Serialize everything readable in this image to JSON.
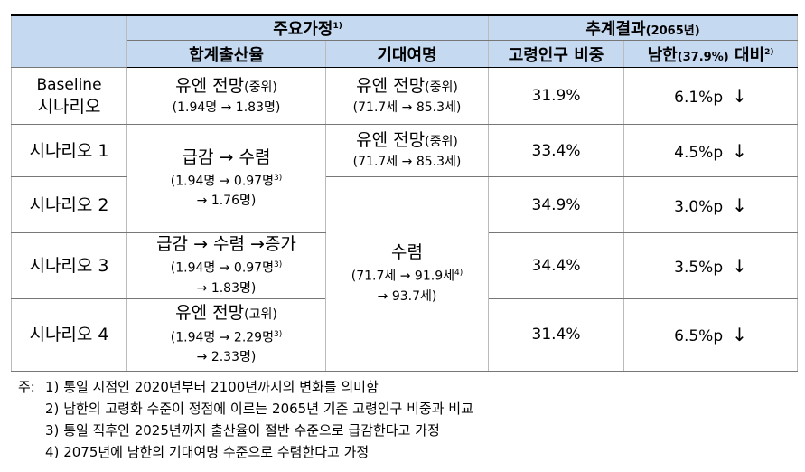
{
  "header": {
    "assumptions": {
      "title": "주요가정",
      "note": "1)"
    },
    "results": {
      "title": "추계결과",
      "year": "(2065년)"
    },
    "fertility": "합계출산율",
    "life": "기대여명",
    "share": "고령인구 비중",
    "diff": {
      "text": "남한",
      "pct": "(37.9%)",
      "rest": "대비",
      "note": "2)"
    }
  },
  "rows": [
    {
      "scenario": [
        "Baseline",
        "시나리오"
      ],
      "fertility": {
        "label": "유엔 전망",
        "variant": "(중위)",
        "path": "(1.94명 → 1.83명)"
      },
      "life": {
        "label": "유엔 전망",
        "variant": "(중위)",
        "path": "(71.7세 → 85.3세)"
      },
      "share": "31.9%",
      "diff": "6.1%p",
      "arrow": "↓"
    },
    {
      "scenario": [
        "시나리오 1"
      ],
      "fertility": {
        "label": "급감 → 수렴",
        "path": "(1.94명 → 0.97명",
        "note": "3)",
        "end": "→ 1.76명)"
      },
      "life": {
        "label": "유엔 전망",
        "variant": "(중위)",
        "path": "(71.7세 → 85.3세)"
      },
      "share": "33.4%",
      "diff": "4.5%p",
      "arrow": "↓"
    },
    {
      "scenario": [
        "시나리오 2"
      ],
      "life": {
        "label": "수렴",
        "path": "(71.7세 → 91.9세",
        "note": "4)",
        "end": "→ 93.7세)"
      },
      "share": "34.9%",
      "diff": "3.0%p",
      "arrow": "↓"
    },
    {
      "scenario": [
        "시나리오 3"
      ],
      "fertility": {
        "label": "급감 → 수렴 →증가",
        "path": "(1.94명 → 0.97명",
        "note": "3)",
        "end": "→ 1.83명)"
      },
      "share": "34.4%",
      "diff": "3.5%p",
      "arrow": "↓"
    },
    {
      "scenario": [
        "시나리오 4"
      ],
      "fertility": {
        "label": "유엔 전망",
        "variant": "(고위)",
        "path": "(1.94명 → 2.29명",
        "note": "3)",
        "end": "→ 2.33명)"
      },
      "share": "31.4%",
      "diff": "6.5%p",
      "arrow": "↓"
    }
  ],
  "notes": {
    "prefix": "주:",
    "items": [
      {
        "num": "1)",
        "text": "통일 시점인 2020년부터 2100년까지의 변화를 의미함"
      },
      {
        "num": "2)",
        "text": "남한의 고령화 수준이 정점에 이르는 2065년 기준 고령인구 비중과 비교"
      },
      {
        "num": "3)",
        "text": "통일 직후인 2025년까지 출산율이 절반 수준으로 급감한다고 가정"
      },
      {
        "num": "4)",
        "text": "2075년에 남한의 기대여명 수준으로 수렴한다고 가정"
      }
    ]
  }
}
